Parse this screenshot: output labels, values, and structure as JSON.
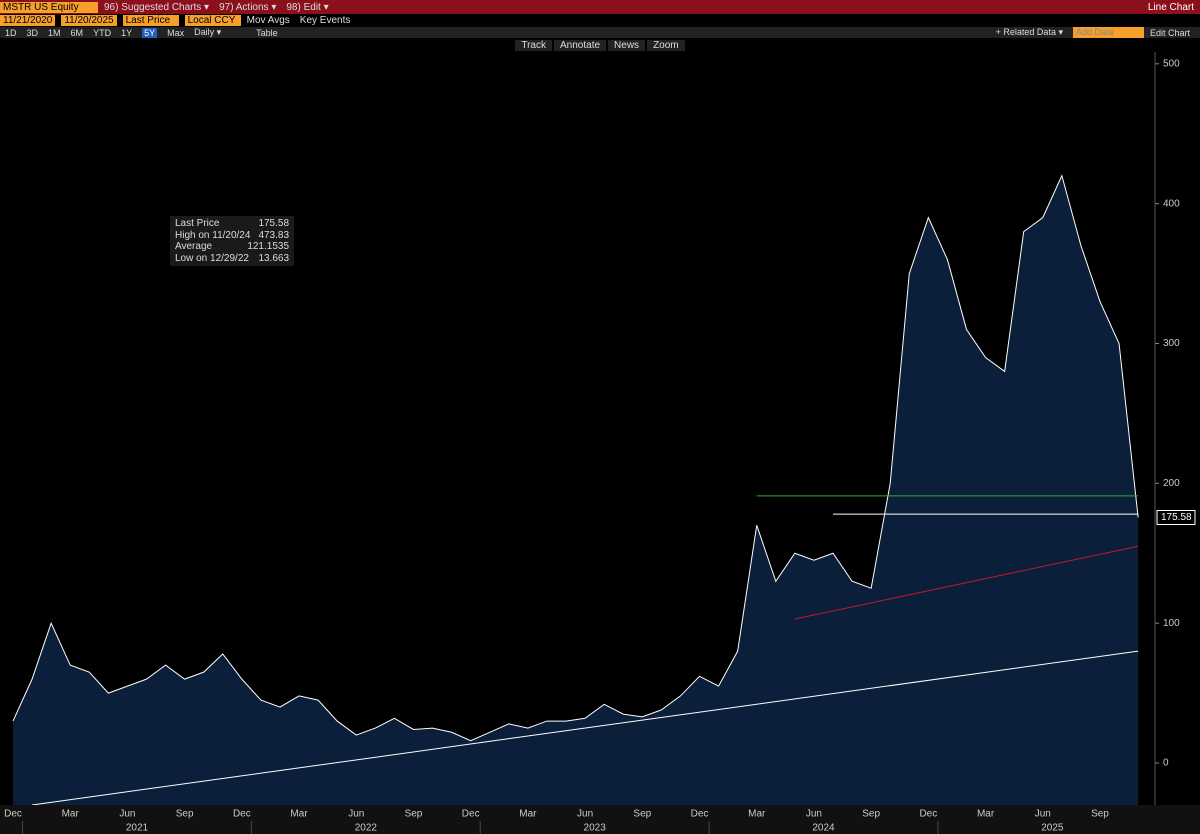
{
  "toolbar": {
    "ticker": "MSTR US Equity",
    "menus": [
      "96) Suggested Charts ▾",
      "97) Actions ▾",
      "98) Edit ▾"
    ],
    "chart_kind": "Line Chart",
    "start_date": "11/21/2020",
    "end_date": "11/20/2025",
    "field": "Last Price",
    "currency": "Local CCY",
    "options": [
      "Mov Avgs",
      "Key Events"
    ],
    "periods": [
      "1D",
      "3D",
      "1M",
      "6M",
      "YTD",
      "1Y",
      "5Y",
      "Max",
      "Daily ▾"
    ],
    "table": "Table",
    "related": "+ Related Data ▾",
    "add_data": "Add Data",
    "edit_chart": "Edit Chart",
    "tools": [
      "Track",
      "Annotate",
      "News",
      "Zoom"
    ]
  },
  "chart_data": {
    "type": "line",
    "categories": [
      "Dec",
      null,
      null,
      "Mar",
      null,
      null,
      "Jun",
      null,
      null,
      "Sep",
      null,
      null,
      "Dec",
      null,
      null,
      "Mar",
      null,
      null,
      "Jun",
      null,
      null,
      "Sep",
      null,
      null,
      "Dec",
      null,
      null,
      "Mar",
      null,
      null,
      "Jun",
      null,
      null,
      "Sep",
      null,
      null,
      "Dec",
      null,
      null,
      "Mar",
      null,
      null,
      "Jun",
      null,
      null,
      "Sep",
      null,
      null,
      "Dec",
      null,
      null,
      "Mar",
      null,
      null,
      "Jun",
      null,
      null,
      "Sep",
      null,
      null
    ],
    "x_groups": [
      "2021",
      "2022",
      "2023",
      "2024",
      "2025"
    ],
    "series": [
      {
        "name": "Last Price",
        "color": "#ffffff",
        "values": [
          30,
          60,
          100,
          70,
          65,
          50,
          55,
          60,
          70,
          60,
          65,
          78,
          60,
          45,
          40,
          48,
          45,
          30,
          20,
          25,
          32,
          24,
          25,
          22,
          16,
          22,
          28,
          25,
          30,
          30,
          32,
          42,
          35,
          33,
          38,
          48,
          62,
          55,
          80,
          170,
          130,
          150,
          145,
          150,
          130,
          125,
          200,
          350,
          390,
          360,
          310,
          290,
          280,
          380,
          390,
          420,
          370,
          330,
          300,
          175.58
        ],
        "value_labels": [
          null,
          null,
          null,
          null,
          null,
          null,
          null,
          null,
          null,
          null,
          null,
          null,
          null,
          null,
          null,
          null,
          null,
          null,
          null,
          null,
          null,
          null,
          null,
          null,
          null,
          null,
          null,
          null,
          null,
          null,
          null,
          null,
          null,
          null,
          null,
          null,
          null,
          null,
          null,
          null,
          null,
          null,
          null,
          null,
          null,
          null,
          null,
          null,
          null,
          null,
          null,
          null,
          null,
          null,
          null,
          null,
          null,
          null,
          null,
          "175.58"
        ]
      }
    ],
    "ylim": [
      -30,
      507
    ],
    "yticks": [
      0,
      100,
      200,
      300,
      400,
      500
    ],
    "trendlines": [
      {
        "color": "#ffffff",
        "from": 1,
        "values": [
          -30,
          80
        ]
      },
      {
        "color": "#2fae2f",
        "from": 39,
        "values": [
          191,
          191
        ]
      },
      {
        "color": "#ffffff",
        "from": 43,
        "values": [
          178,
          178
        ]
      },
      {
        "color": "#c0182a",
        "from": 41,
        "values": [
          103,
          155
        ]
      }
    ],
    "legend": [
      {
        "label": "Last Price",
        "value": "175.58"
      },
      {
        "label": "High on 11/20/24",
        "value": "473.83"
      },
      {
        "label": "Average",
        "value": "121.1535"
      },
      {
        "label": "Low on 12/29/22",
        "value": "13.663"
      }
    ]
  }
}
